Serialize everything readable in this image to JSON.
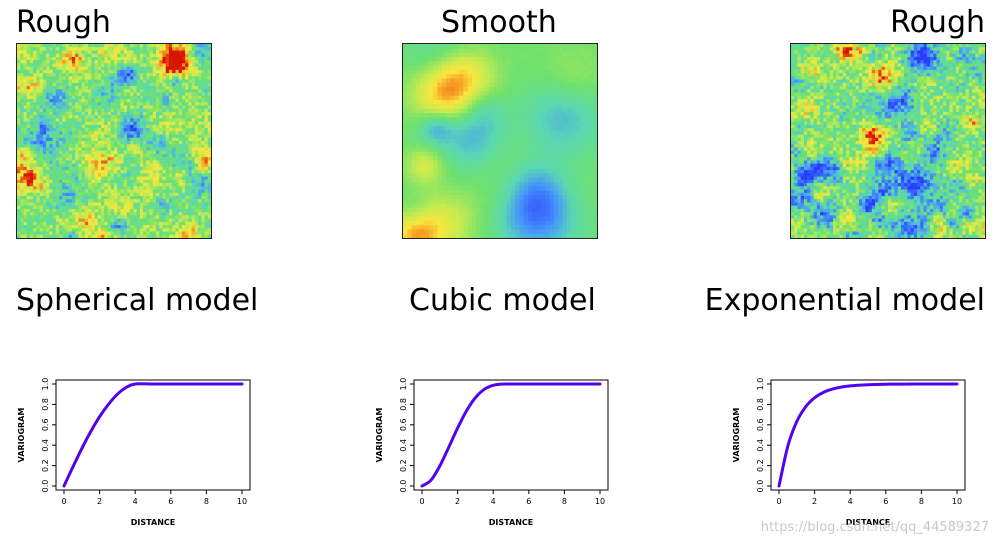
{
  "fields": [
    {
      "label": "Rough",
      "kind": "rough"
    },
    {
      "label": "Smooth",
      "kind": "smooth"
    },
    {
      "label": "Rough",
      "kind": "rough2"
    }
  ],
  "models": [
    {
      "label": "Spherical model"
    },
    {
      "label": "Cubic model"
    },
    {
      "label": "Exponential model"
    }
  ],
  "colors": {
    "curve": "#5500ee",
    "field_low": "#2244ff",
    "field_mid": "#6ddd88",
    "field_high": "#dd1100"
  },
  "chart_data": [
    {
      "type": "line",
      "title": "",
      "xlabel": "DISTANCE",
      "ylabel": "VARIOGRAM",
      "xlim": [
        0,
        10
      ],
      "ylim": [
        0,
        1
      ],
      "xticks": [
        "0",
        "2",
        "4",
        "6",
        "8",
        "10"
      ],
      "yticks": [
        "0.0",
        "0.2",
        "0.4",
        "0.6",
        "0.8",
        "1.0"
      ],
      "x": [
        0,
        0.5,
        1,
        1.5,
        2,
        2.5,
        3,
        3.5,
        4,
        5,
        6,
        7,
        8,
        9,
        10
      ],
      "y": [
        0,
        0.187,
        0.367,
        0.533,
        0.68,
        0.801,
        0.9,
        0.967,
        1,
        1,
        1,
        1,
        1,
        1,
        1
      ]
    },
    {
      "type": "line",
      "title": "",
      "xlabel": "DISTANCE",
      "ylabel": "VARIOGRAM",
      "xlim": [
        0,
        10
      ],
      "ylim": [
        0,
        1
      ],
      "xticks": [
        "0",
        "2",
        "4",
        "6",
        "8",
        "10"
      ],
      "yticks": [
        "0.0",
        "0.2",
        "0.4",
        "0.6",
        "0.8",
        "1.0"
      ],
      "x": [
        0,
        0.5,
        1,
        1.5,
        2,
        2.5,
        3,
        3.5,
        4,
        4.5,
        5,
        5.5,
        6,
        7,
        8,
        9,
        10
      ],
      "y": [
        0,
        0.056,
        0.196,
        0.379,
        0.568,
        0.737,
        0.866,
        0.948,
        0.987,
        0.999,
        1,
        1,
        1,
        1,
        1,
        1,
        1
      ]
    },
    {
      "type": "line",
      "title": "",
      "xlabel": "DISTANCE",
      "ylabel": "VARIOGRAM",
      "xlim": [
        0,
        10
      ],
      "ylim": [
        0,
        1
      ],
      "xticks": [
        "0",
        "2",
        "4",
        "6",
        "8",
        "10"
      ],
      "yticks": [
        "0.0",
        "0.2",
        "0.4",
        "0.6",
        "0.8",
        "1.0"
      ],
      "x": [
        0,
        0.5,
        1,
        1.5,
        2,
        2.5,
        3,
        3.5,
        4,
        5,
        6,
        7,
        8,
        9,
        10
      ],
      "y": [
        0,
        0.393,
        0.632,
        0.777,
        0.865,
        0.918,
        0.95,
        0.97,
        0.982,
        0.993,
        0.998,
        0.999,
        1,
        1,
        1
      ]
    }
  ],
  "watermark": "https://blog.csdn.net/qq_44589327"
}
